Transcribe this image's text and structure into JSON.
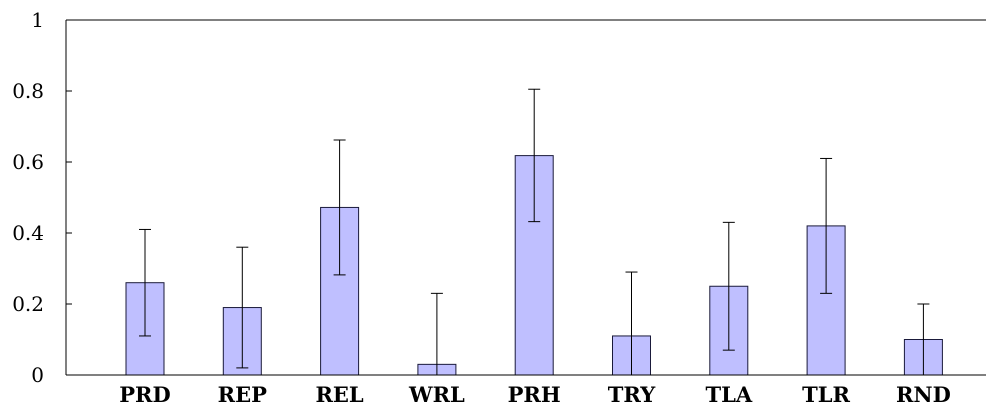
{
  "chart_data": {
    "type": "bar",
    "title": "",
    "xlabel": "",
    "ylabel": "",
    "categories": [
      "PRD",
      "REP",
      "REL",
      "WRL",
      "PRH",
      "TRY",
      "TLA",
      "TLR",
      "RND"
    ],
    "values": [
      0.26,
      0.19,
      0.472,
      0.03,
      0.618,
      0.11,
      0.25,
      0.42,
      0.1
    ],
    "error_low": [
      0.11,
      0.02,
      0.282,
      0.0,
      0.432,
      0.0,
      0.07,
      0.23,
      0.0
    ],
    "error_high": [
      0.41,
      0.36,
      0.662,
      0.23,
      0.805,
      0.29,
      0.43,
      0.61,
      0.2
    ],
    "ylim": [
      0,
      1
    ],
    "y_ticks": [
      0,
      0.2,
      0.4,
      0.6,
      0.8,
      1
    ],
    "y_tick_labels": [
      "0",
      "0.2",
      "0.4",
      "0.6",
      "0.8",
      "1"
    ],
    "grid": false,
    "legend": "none",
    "colors": {
      "bar_fill": "#bfbfff",
      "bar_stroke": "#1a1a3a",
      "axis": "#000000",
      "error_bar": "#000000"
    }
  }
}
